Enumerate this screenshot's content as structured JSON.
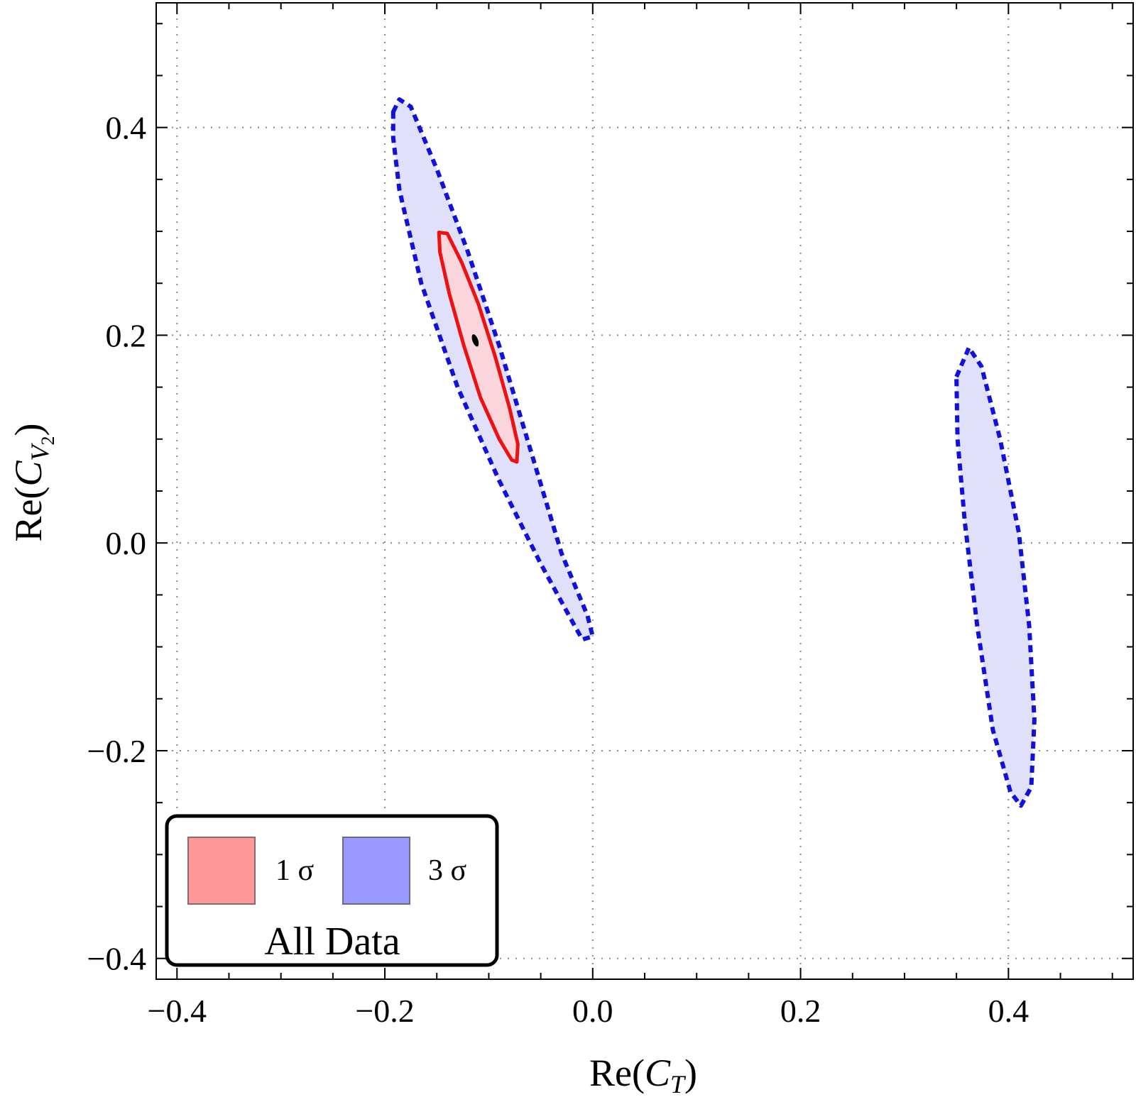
{
  "chart_data": {
    "type": "contour",
    "title": "",
    "xlabel": "Re(C_T)",
    "ylabel": "Re(C_V2)",
    "xlabel_parts": {
      "prefix": "Re(",
      "symbol": "C",
      "sub": "T",
      "suffix": ")"
    },
    "ylabel_parts": {
      "prefix": "Re(",
      "symbol": "C",
      "sub": "V",
      "subsub": "2",
      "suffix": ")"
    },
    "xlim": [
      -0.42,
      0.52
    ],
    "ylim": [
      -0.42,
      0.52
    ],
    "xticks": [
      -0.4,
      -0.2,
      0.0,
      0.2,
      0.4
    ],
    "yticks": [
      -0.4,
      -0.2,
      0.0,
      0.2,
      0.4
    ],
    "xtick_labels": [
      "−0.4",
      "−0.2",
      "0.0",
      "0.2",
      "0.4"
    ],
    "ytick_labels": [
      "−0.4",
      "−0.2",
      "0.0",
      "0.2",
      "0.4"
    ],
    "grid": true,
    "best_fit": {
      "x": -0.113,
      "y": 0.195
    },
    "series": [
      {
        "name": "1 σ",
        "fill": "#fad6dc",
        "stroke": "#ee1111",
        "dashed": false,
        "regions": [
          [
            [
              -0.148,
              0.299
            ],
            [
              -0.14,
              0.298
            ],
            [
              -0.126,
              0.27
            ],
            [
              -0.11,
              0.23
            ],
            [
              -0.094,
              0.18
            ],
            [
              -0.08,
              0.13
            ],
            [
              -0.072,
              0.095
            ],
            [
              -0.073,
              0.078
            ],
            [
              -0.078,
              0.08
            ],
            [
              -0.09,
              0.1
            ],
            [
              -0.108,
              0.14
            ],
            [
              -0.124,
              0.19
            ],
            [
              -0.138,
              0.24
            ],
            [
              -0.147,
              0.28
            ]
          ]
        ]
      },
      {
        "name": "3 σ",
        "fill": "#e0e0fa",
        "stroke": "#1111dd",
        "dashed": true,
        "regions": [
          [
            [
              -0.192,
              0.415
            ],
            [
              -0.186,
              0.427
            ],
            [
              -0.175,
              0.42
            ],
            [
              -0.15,
              0.36
            ],
            [
              -0.12,
              0.28
            ],
            [
              -0.09,
              0.19
            ],
            [
              -0.06,
              0.09
            ],
            [
              -0.03,
              -0.01
            ],
            [
              -0.005,
              -0.07
            ],
            [
              0.0,
              -0.09
            ],
            [
              -0.01,
              -0.093
            ],
            [
              -0.02,
              -0.075
            ],
            [
              -0.05,
              -0.02
            ],
            [
              -0.09,
              0.06
            ],
            [
              -0.13,
              0.15
            ],
            [
              -0.165,
              0.25
            ],
            [
              -0.186,
              0.34
            ],
            [
              -0.192,
              0.39
            ]
          ],
          [
            [
              0.35,
              0.16
            ],
            [
              0.362,
              0.188
            ],
            [
              0.374,
              0.17
            ],
            [
              0.392,
              0.1
            ],
            [
              0.41,
              0.01
            ],
            [
              0.42,
              -0.08
            ],
            [
              0.425,
              -0.17
            ],
            [
              0.422,
              -0.235
            ],
            [
              0.412,
              -0.253
            ],
            [
              0.402,
              -0.24
            ],
            [
              0.385,
              -0.18
            ],
            [
              0.37,
              -0.08
            ],
            [
              0.358,
              0.02
            ],
            [
              0.351,
              0.1
            ]
          ]
        ]
      }
    ],
    "legend": {
      "placement": "bottom-left",
      "title": "All Data",
      "items": [
        {
          "label": "1 σ",
          "swatch": "#ff9999"
        },
        {
          "label": "3 σ",
          "swatch": "#9999ff"
        }
      ]
    }
  }
}
